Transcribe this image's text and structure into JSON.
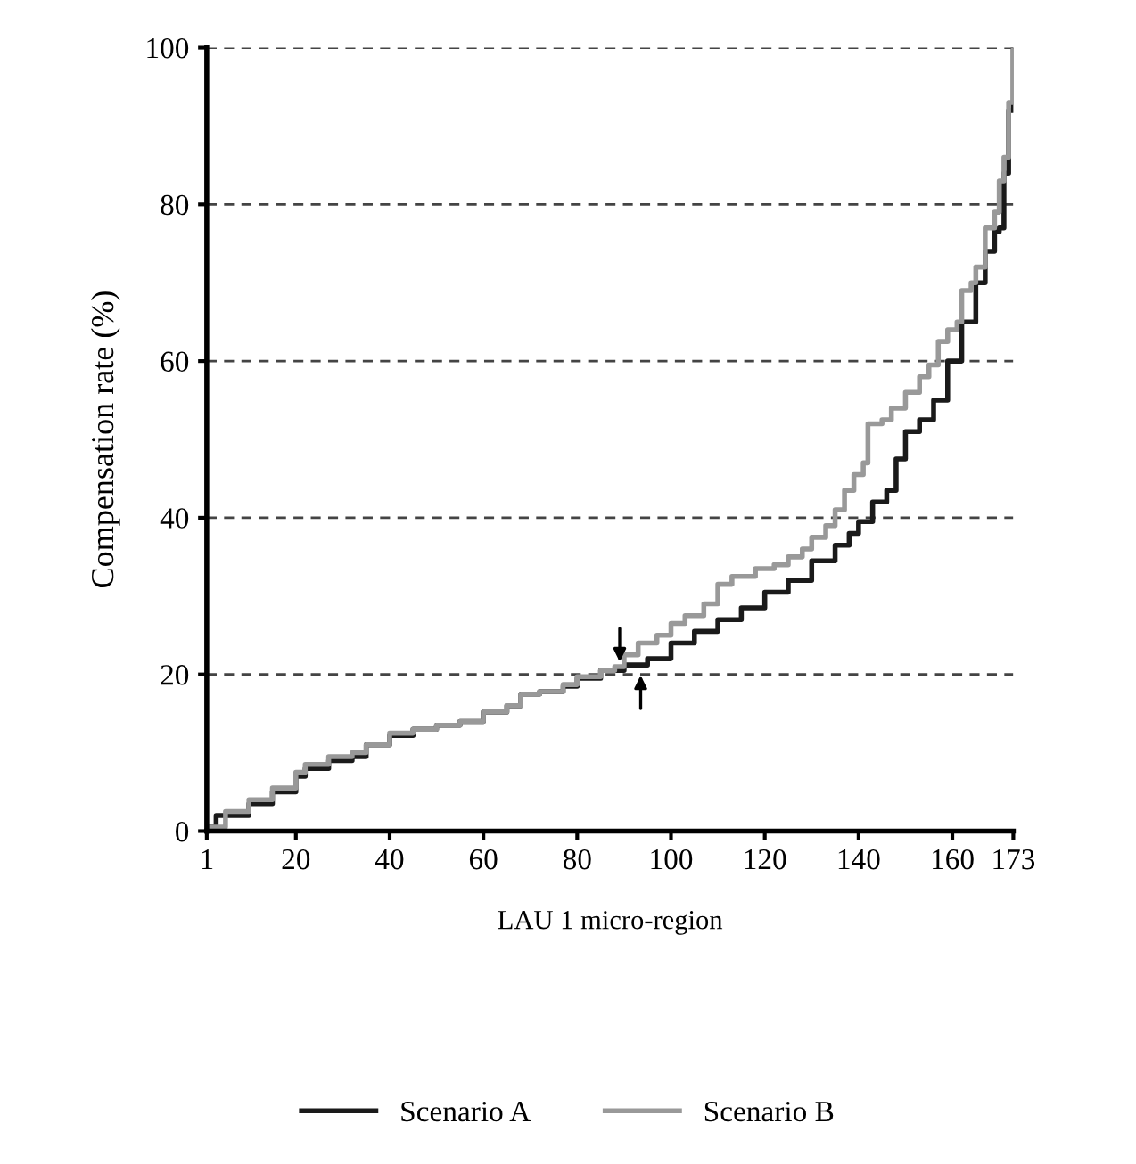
{
  "chart_data": {
    "type": "step",
    "xlabel": "LAU 1 micro-region",
    "ylabel": "Compensation rate (%)",
    "xlim": [
      1,
      173
    ],
    "xticks": [
      1,
      20,
      40,
      60,
      80,
      100,
      120,
      140,
      160,
      173
    ],
    "ylim": [
      0,
      100
    ],
    "yticks": [
      0,
      20,
      40,
      60,
      80,
      100
    ],
    "grid": "y",
    "legend": "bottom",
    "line_style": "solid",
    "series": [
      {
        "name": "Scenario A",
        "color": "#1a1a1a",
        "x": [
          1,
          3,
          10,
          15,
          20,
          22,
          27,
          32,
          35,
          40,
          45,
          50,
          55,
          60,
          65,
          68,
          72,
          77,
          80,
          85,
          90,
          95,
          100,
          105,
          110,
          115,
          120,
          125,
          130,
          135,
          138,
          140,
          143,
          146,
          148,
          150,
          153,
          156,
          159,
          162,
          165,
          167,
          169,
          170,
          171,
          172,
          173
        ],
        "values": [
          0.5,
          2,
          3.5,
          5,
          7,
          8,
          9,
          9.5,
          11,
          12.2,
          13,
          13.5,
          14,
          15.2,
          16,
          17.5,
          17.8,
          18.5,
          19.5,
          20.5,
          21.2,
          22,
          24,
          25.5,
          27,
          28.5,
          30.5,
          32,
          34.5,
          36.5,
          38,
          39.5,
          42,
          43.5,
          47.5,
          51,
          52.5,
          55,
          60,
          65,
          70,
          74,
          76.5,
          77,
          84,
          92,
          100
        ]
      },
      {
        "name": "Scenario B",
        "color": "#999999",
        "x": [
          1,
          5,
          10,
          15,
          20,
          22,
          27,
          32,
          35,
          40,
          45,
          50,
          55,
          60,
          65,
          68,
          72,
          77,
          80,
          85,
          88,
          90,
          93,
          97,
          100,
          103,
          107,
          110,
          113,
          118,
          122,
          125,
          128,
          130,
          133,
          135,
          137,
          139,
          141,
          142,
          145,
          147,
          150,
          153,
          155,
          157,
          159,
          161,
          162,
          164,
          165,
          167,
          169,
          170,
          171,
          172,
          173
        ],
        "values": [
          0.5,
          2.5,
          4,
          5.5,
          7.5,
          8.5,
          9.5,
          10,
          11,
          12.5,
          13,
          13.5,
          14,
          15.2,
          16,
          17.5,
          17.8,
          18.7,
          19.7,
          20.5,
          21,
          22.5,
          24,
          25,
          26.5,
          27.5,
          29,
          31.5,
          32.5,
          33.5,
          34,
          35,
          36,
          37.5,
          39,
          41,
          43.5,
          45.5,
          47,
          52,
          52.5,
          54,
          56,
          58,
          59.5,
          62.5,
          64,
          65,
          69,
          70,
          72,
          77,
          79,
          83,
          86,
          93,
          100
        ]
      }
    ]
  }
}
